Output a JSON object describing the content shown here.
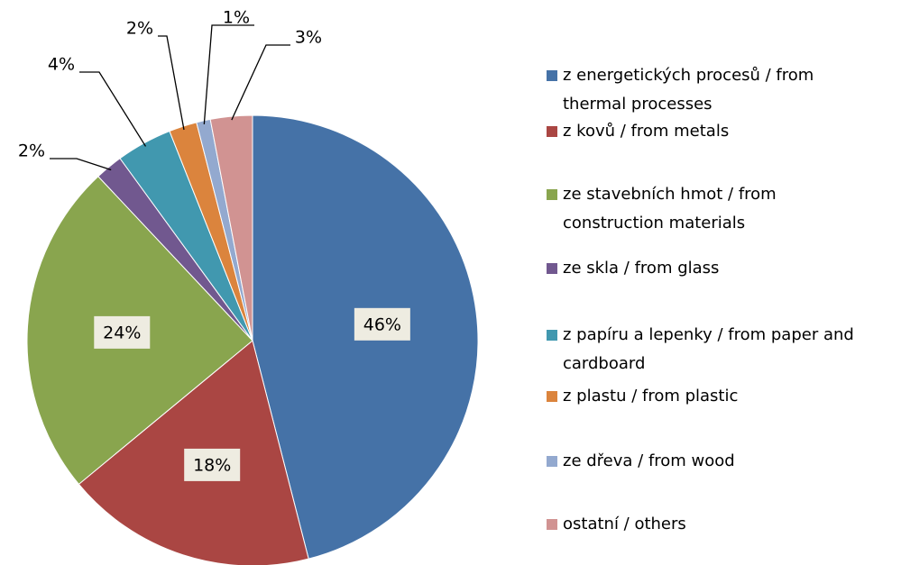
{
  "chart_data": {
    "type": "pie",
    "categories": [
      "z energetických procesů / from thermal processes",
      "z kovů / from metals",
      "ze stavebních hmot / from construction materials",
      "ze skla /  from glass",
      "z papíru a lepenky / from paper and cardboard",
      "z plastu / from plastic",
      "ze dřeva /  from wood",
      "ostatní / others"
    ],
    "values": [
      46,
      18,
      24,
      2,
      4,
      2,
      1,
      3
    ],
    "value_labels": [
      "46%",
      "18%",
      "24%",
      "2%",
      "4%",
      "2%",
      "1%",
      "3%"
    ],
    "colors": [
      "#4572a7",
      "#aa4643",
      "#89a54e",
      "#71588f",
      "#4198af",
      "#db843d",
      "#93a9cf",
      "#d19392"
    ],
    "legend": "right"
  }
}
